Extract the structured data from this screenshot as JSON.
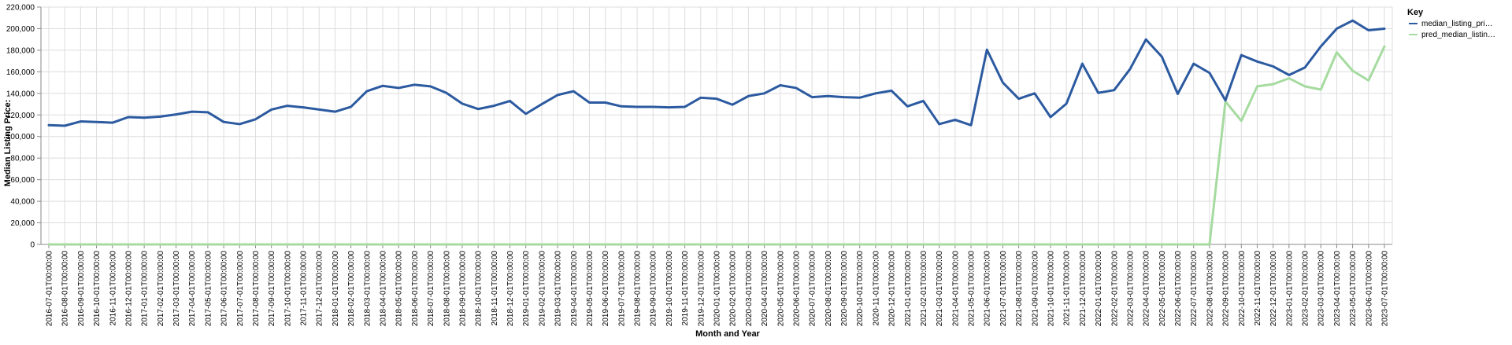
{
  "chart_data": {
    "type": "line",
    "xlabel": "Month and Year",
    "ylabel": "Median Listing Price:",
    "ylim": [
      0,
      220000
    ],
    "yticks": [
      0,
      20000,
      40000,
      60000,
      80000,
      100000,
      120000,
      140000,
      160000,
      180000,
      200000,
      220000
    ],
    "ytick_labels": [
      "0",
      "20,000",
      "40,000",
      "60,000",
      "80,000",
      "100,000",
      "120,000",
      "140,000",
      "160,000",
      "180,000",
      "200,000",
      "220,000"
    ],
    "grid": true,
    "legend": {
      "title": "Key",
      "placement": "right",
      "entries": [
        "median_listing_pri…",
        "pred_median_listin…"
      ]
    },
    "x": [
      "2016-07-01T00:00:00",
      "2016-08-01T00:00:00",
      "2016-09-01T00:00:00",
      "2016-10-01T00:00:00",
      "2016-11-01T00:00:00",
      "2016-12-01T00:00:00",
      "2017-01-01T00:00:00",
      "2017-02-01T00:00:00",
      "2017-03-01T00:00:00",
      "2017-04-01T00:00:00",
      "2017-05-01T00:00:00",
      "2017-06-01T00:00:00",
      "2017-07-01T00:00:00",
      "2017-08-01T00:00:00",
      "2017-09-01T00:00:00",
      "2017-10-01T00:00:00",
      "2017-11-01T00:00:00",
      "2017-12-01T00:00:00",
      "2018-01-01T00:00:00",
      "2018-02-01T00:00:00",
      "2018-03-01T00:00:00",
      "2018-04-01T00:00:00",
      "2018-05-01T00:00:00",
      "2018-06-01T00:00:00",
      "2018-07-01T00:00:00",
      "2018-08-01T00:00:00",
      "2018-09-01T00:00:00",
      "2018-10-01T00:00:00",
      "2018-11-01T00:00:00",
      "2018-12-01T00:00:00",
      "2019-01-01T00:00:00",
      "2019-02-01T00:00:00",
      "2019-03-01T00:00:00",
      "2019-04-01T00:00:00",
      "2019-05-01T00:00:00",
      "2019-06-01T00:00:00",
      "2019-07-01T00:00:00",
      "2019-08-01T00:00:00",
      "2019-09-01T00:00:00",
      "2019-10-01T00:00:00",
      "2019-11-01T00:00:00",
      "2019-12-01T00:00:00",
      "2020-01-01T00:00:00",
      "2020-02-01T00:00:00",
      "2020-03-01T00:00:00",
      "2020-04-01T00:00:00",
      "2020-05-01T00:00:00",
      "2020-06-01T00:00:00",
      "2020-07-01T00:00:00",
      "2020-08-01T00:00:00",
      "2020-09-01T00:00:00",
      "2020-10-01T00:00:00",
      "2020-11-01T00:00:00",
      "2020-12-01T00:00:00",
      "2021-01-01T00:00:00",
      "2021-02-01T00:00:00",
      "2021-03-01T00:00:00",
      "2021-04-01T00:00:00",
      "2021-05-01T00:00:00",
      "2021-06-01T00:00:00",
      "2021-07-01T00:00:00",
      "2021-08-01T00:00:00",
      "2021-09-01T00:00:00",
      "2021-10-01T00:00:00",
      "2021-11-01T00:00:00",
      "2021-12-01T00:00:00",
      "2022-01-01T00:00:00",
      "2022-02-01T00:00:00",
      "2022-03-01T00:00:00",
      "2022-04-01T00:00:00",
      "2022-05-01T00:00:00",
      "2022-06-01T00:00:00",
      "2022-07-01T00:00:00",
      "2022-08-01T00:00:00",
      "2022-09-01T00:00:00",
      "2022-10-01T00:00:00",
      "2022-11-01T00:00:00",
      "2022-12-01T00:00:00",
      "2023-01-01T00:00:00",
      "2023-02-01T00:00:00",
      "2023-03-01T00:00:00",
      "2023-04-01T00:00:00",
      "2023-05-01T00:00:00",
      "2023-06-01T00:00:00",
      "2023-07-01T00:00:00"
    ],
    "series": [
      {
        "name": "median_listing_pri…",
        "color": "#2c5aa0",
        "values": [
          110500,
          110000,
          114000,
          113500,
          112800,
          118000,
          117500,
          118500,
          120500,
          123000,
          122500,
          113500,
          111500,
          116000,
          125000,
          128500,
          127000,
          125000,
          123000,
          127500,
          142000,
          147000,
          145000,
          148000,
          146500,
          140500,
          130500,
          125500,
          128500,
          133000,
          121000,
          130000,
          138500,
          142000,
          131500,
          131500,
          128000,
          127500,
          127500,
          127000,
          127500,
          136000,
          135000,
          129500,
          137500,
          140000,
          147500,
          145000,
          136500,
          137500,
          136500,
          136000,
          140000,
          142500,
          128000,
          133000,
          111500,
          115500,
          110500,
          180500,
          150000,
          135000,
          140000,
          118000,
          130500,
          167500,
          140500,
          143000,
          162500,
          190000,
          174000,
          139500,
          167500,
          159000,
          133500,
          175500,
          169500,
          165000,
          157000,
          164000,
          183500,
          200000,
          207500,
          198500,
          200000
        ]
      },
      {
        "name": "pred_median_listin…",
        "color": "#a6dba0",
        "values": [
          0,
          0,
          0,
          0,
          0,
          0,
          0,
          0,
          0,
          0,
          0,
          0,
          0,
          0,
          0,
          0,
          0,
          0,
          0,
          0,
          0,
          0,
          0,
          0,
          0,
          0,
          0,
          0,
          0,
          0,
          0,
          0,
          0,
          0,
          0,
          0,
          0,
          0,
          0,
          0,
          0,
          0,
          0,
          0,
          0,
          0,
          0,
          0,
          0,
          0,
          0,
          0,
          0,
          0,
          0,
          0,
          0,
          0,
          0,
          0,
          0,
          0,
          0,
          0,
          0,
          0,
          0,
          0,
          0,
          0,
          0,
          0,
          0,
          0,
          132500,
          114500,
          146500,
          148500,
          154000,
          146500,
          143500,
          178000,
          161000,
          152000,
          183500
        ]
      }
    ]
  }
}
